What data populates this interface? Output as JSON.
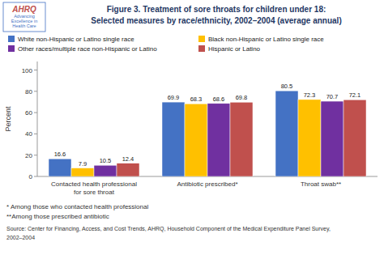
{
  "chart_data": {
    "type": "bar",
    "title": "Figure 3. Treatment of sore throats for children under 18:\nSelected measures by race/ethnicity, 2002–2004 (average annual)",
    "categories": [
      "Contacted health professional\nfor sore throat",
      "Antibiotic prescribed*",
      "Throat swab**"
    ],
    "series": [
      {
        "name": "White non-Hispanic or Latino single race",
        "color": "#4472c4",
        "values": [
          16.6,
          69.9,
          80.5
        ]
      },
      {
        "name": "Black non-Hispanic or Latino single race",
        "color": "#ffc000",
        "values": [
          7.9,
          68.3,
          72.3
        ]
      },
      {
        "name": "Other races/multiple race non-Hispanic or Latino",
        "color": "#7030a0",
        "values": [
          10.5,
          68.6,
          70.7
        ]
      },
      {
        "name": "Hispanic or Latino",
        "color": "#c0504d",
        "values": [
          12.4,
          69.8,
          72.1
        ]
      }
    ],
    "ylabel": "Percent",
    "ylim": [
      0,
      108
    ],
    "yticks": [
      0,
      20,
      40,
      60,
      80,
      100
    ],
    "grid": false,
    "legend": "top",
    "data_labels": true,
    "annotations": [
      "AHRQ",
      "Advancing\nExcellence in\nHealth Care"
    ],
    "footnotes": [
      "* Among those who contacted health professional",
      "**Among those prescribed antibiotic",
      "Source: Center for Financing, Access, and Cost Trends, AHRQ, Household Component of the Medical Expenditure Panel Survey,",
      "2002–2004"
    ]
  }
}
